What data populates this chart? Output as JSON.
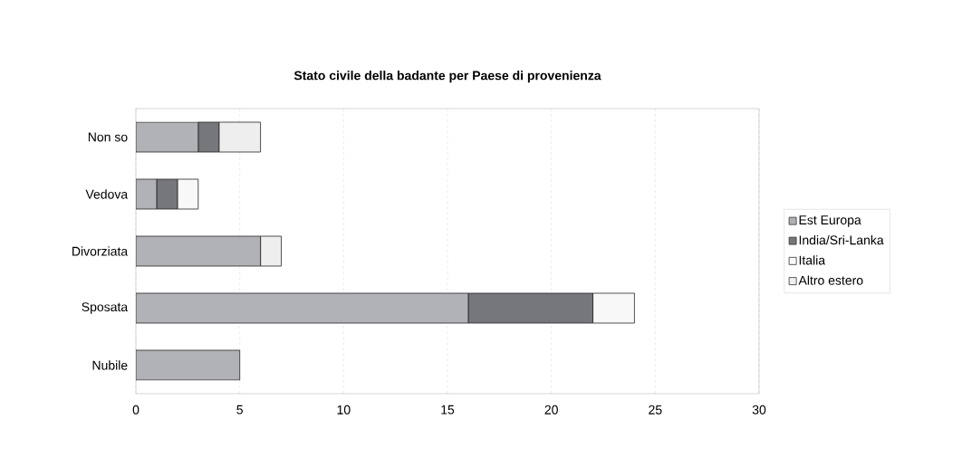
{
  "chart_data": {
    "type": "bar",
    "orientation": "horizontal",
    "stacked": true,
    "title": "Stato civile della badante per Paese di provenienza",
    "categories": [
      "Non so",
      "Vedova",
      "Divorziata",
      "Sposata",
      "Nubile"
    ],
    "series": [
      {
        "name": "Est Europa",
        "color": "#b1b2b5",
        "values": [
          3,
          1,
          6,
          16,
          5
        ]
      },
      {
        "name": "India/Sri-Lanka",
        "color": "#76777b",
        "values": [
          1,
          1,
          0,
          6,
          0
        ]
      },
      {
        "name": "Italia",
        "color": "#f8f8f8",
        "values": [
          0,
          1,
          0,
          2,
          0
        ]
      },
      {
        "name": "Altro estero",
        "color": "#eeeeee",
        "values": [
          2,
          0,
          1,
          0,
          0
        ]
      }
    ],
    "xlim": [
      0,
      30
    ],
    "xticks": [
      0,
      5,
      10,
      15,
      20,
      25,
      30
    ],
    "grid": "x",
    "legend": "right"
  }
}
